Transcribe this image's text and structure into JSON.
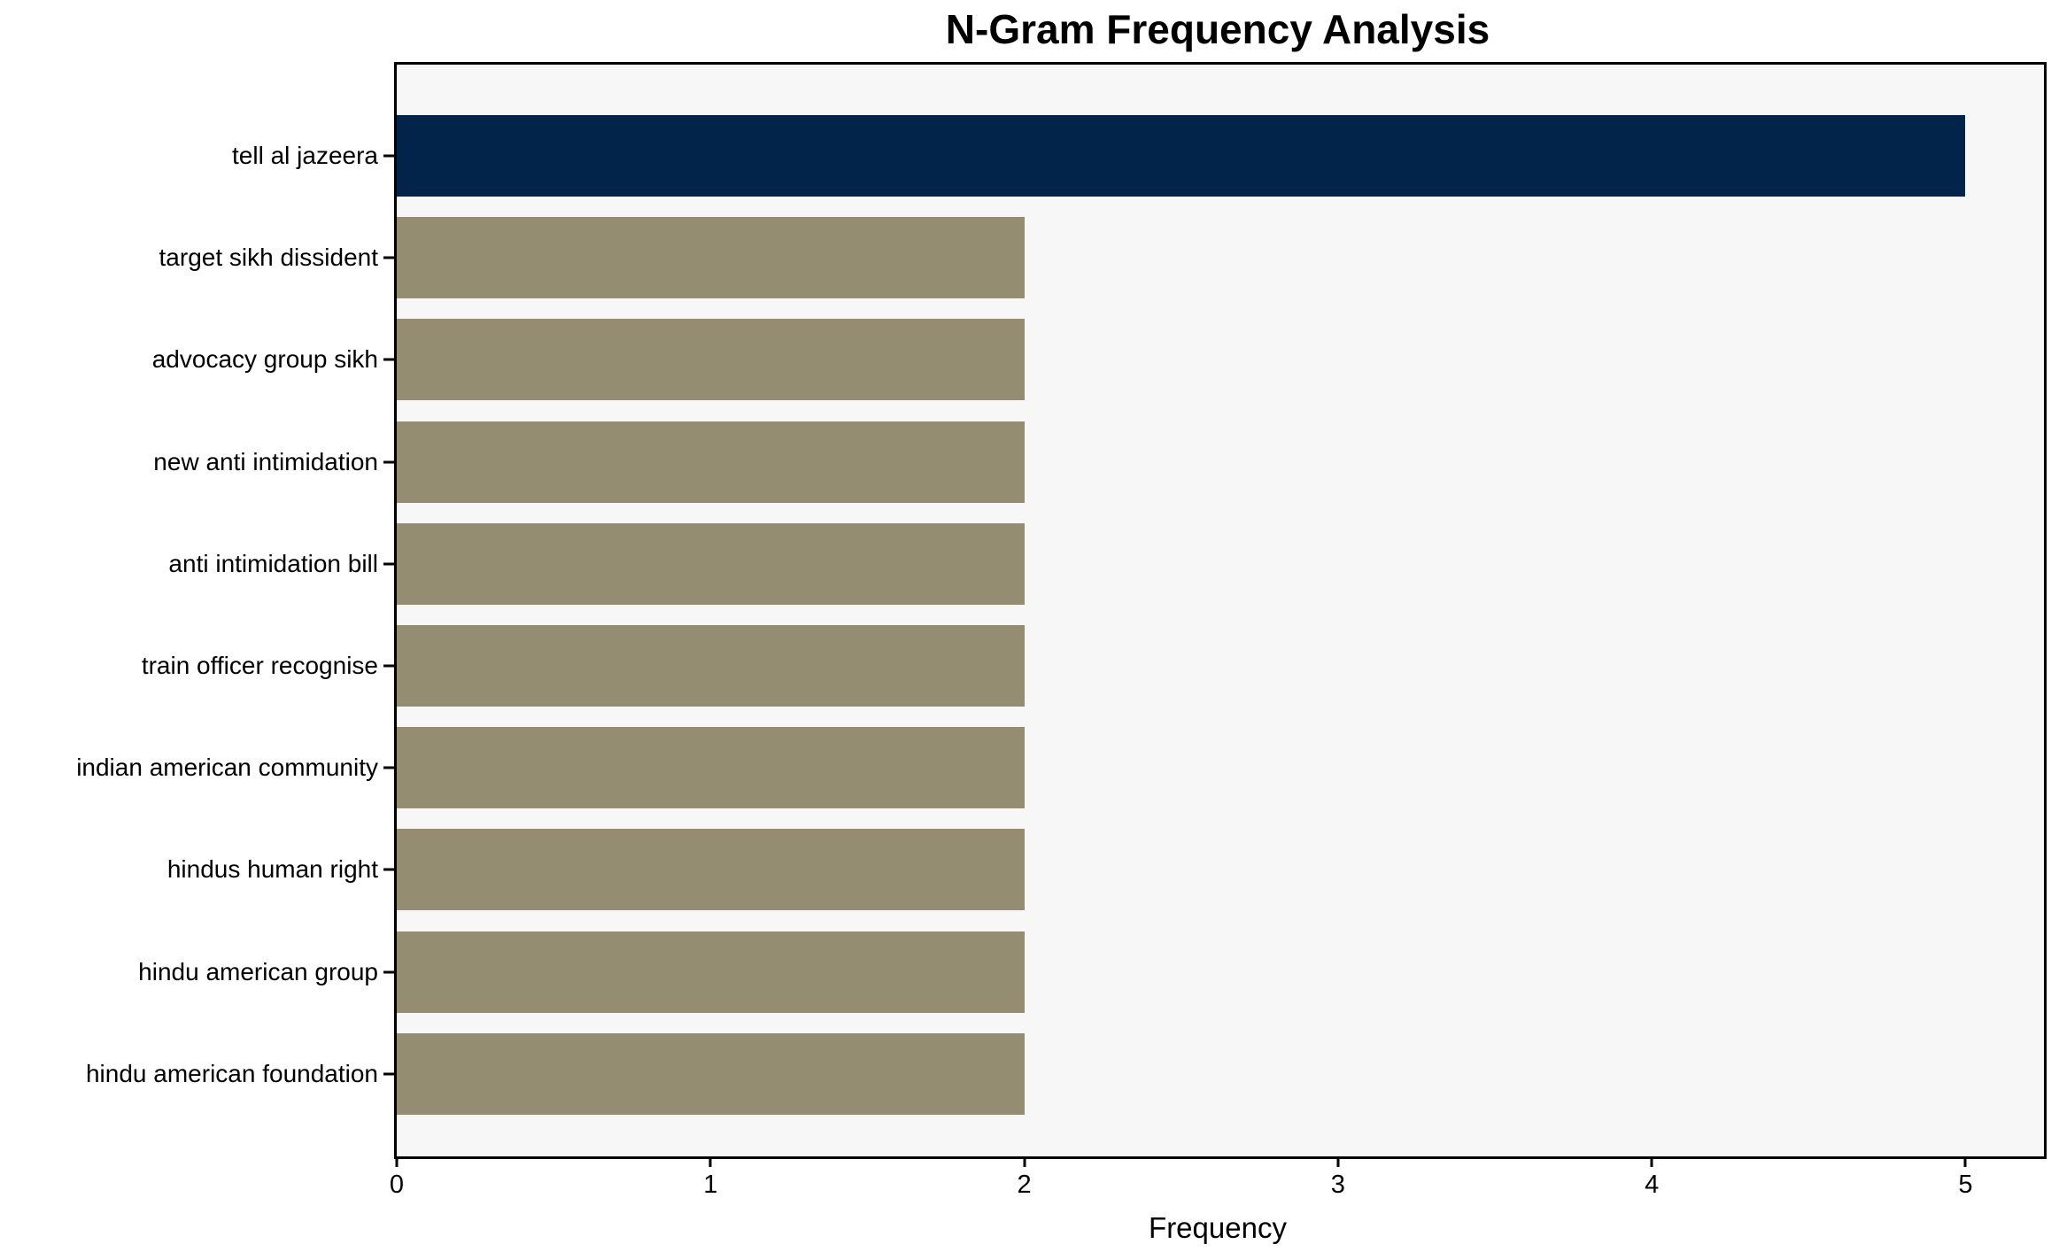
{
  "chart_data": {
    "type": "bar",
    "orientation": "horizontal",
    "title": "N-Gram Frequency Analysis",
    "xlabel": "Frequency",
    "ylabel": "",
    "categories": [
      "tell al jazeera",
      "target sikh dissident",
      "advocacy group sikh",
      "new anti intimidation",
      "anti intimidation bill",
      "train officer recognise",
      "indian american community",
      "hindus human right",
      "hindu american group",
      "hindu american foundation"
    ],
    "values": [
      5,
      2,
      2,
      2,
      2,
      2,
      2,
      2,
      2,
      2
    ],
    "bar_colors": [
      "#02234a",
      "#948d72",
      "#948d72",
      "#948d72",
      "#948d72",
      "#948d72",
      "#948d72",
      "#948d72",
      "#948d72",
      "#948d72"
    ],
    "x_ticks": [
      "0",
      "1",
      "2",
      "3",
      "4",
      "5"
    ],
    "x_tick_values": [
      0,
      1,
      2,
      3,
      4,
      5
    ],
    "xlim": [
      0,
      5.25
    ],
    "grid": false,
    "legend_position": "none",
    "plot_background": "#f7f7f7",
    "figure_background": "#ffffff",
    "axis_color": "#000000"
  }
}
